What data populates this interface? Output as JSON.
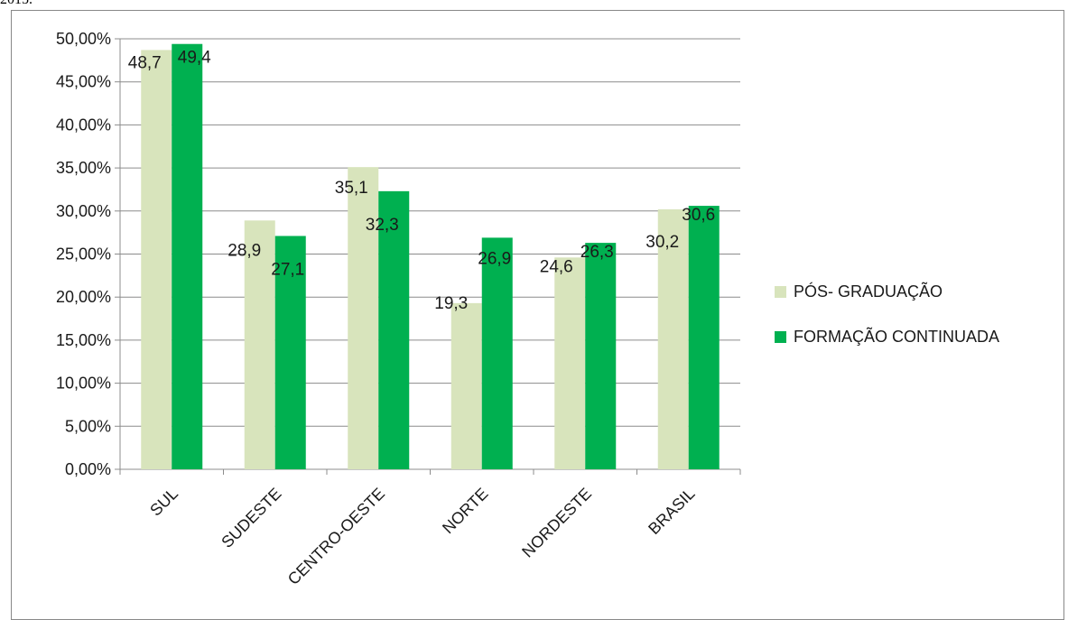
{
  "caption": "2015.",
  "chart_data": {
    "type": "bar",
    "categories": [
      "SUL",
      "SUDESTE",
      "CENTRO-OESTE",
      "NORTE",
      "NORDESTE",
      "BRASIL"
    ],
    "series": [
      {
        "name": "PÓS- GRADUAÇÃO",
        "color": "#d8e4bc",
        "values": [
          48.7,
          28.9,
          35.1,
          19.3,
          24.6,
          30.2
        ],
        "labels": [
          "48,7",
          "28,9",
          "35,1",
          "19,3",
          "24,6",
          "30,2"
        ]
      },
      {
        "name": "FORMAÇÃO CONTINUADA",
        "color": "#00b050",
        "values": [
          49.4,
          27.1,
          32.3,
          26.9,
          26.3,
          30.6
        ],
        "labels": [
          "49,4",
          "27,1",
          "32,3",
          "26,9",
          "26,3",
          "30,6"
        ]
      }
    ],
    "yticks": [
      "0,00%",
      "5,00%",
      "10,00%",
      "15,00%",
      "20,00%",
      "25,00%",
      "30,00%",
      "35,00%",
      "40,00%",
      "45,00%",
      "50,00%"
    ],
    "ylim": [
      0,
      50
    ],
    "grid": true,
    "legend": "right",
    "xlabel": "",
    "ylabel": ""
  }
}
